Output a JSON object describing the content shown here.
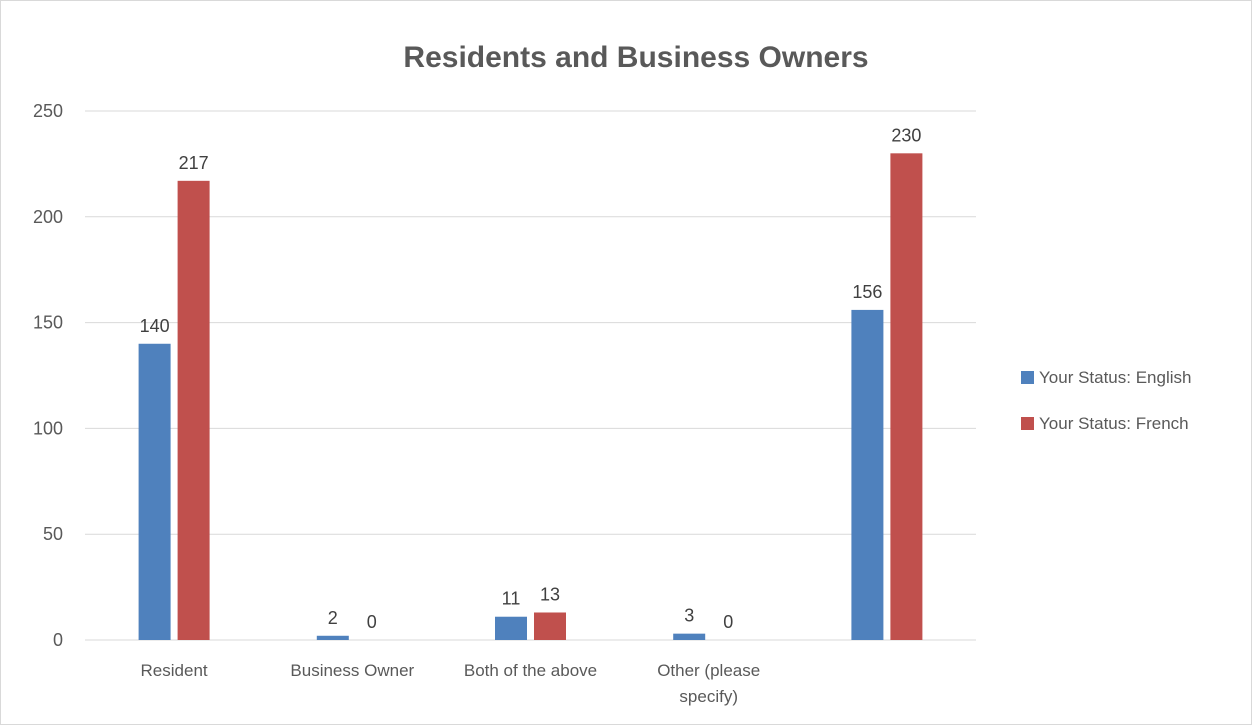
{
  "chart_data": {
    "type": "bar",
    "title": "Residents and Business Owners",
    "xlabel": "",
    "ylabel": "",
    "ylim": [
      0,
      250
    ],
    "yticks": [
      0,
      50,
      100,
      150,
      200,
      250
    ],
    "grid": true,
    "legend_position": "right",
    "categories": [
      "Resident",
      "Business Owner",
      "Both of the above",
      "Other (please specify)",
      ""
    ],
    "series": [
      {
        "name": "Your Status: English",
        "color": "#4f81bd",
        "values": [
          140,
          2,
          11,
          3,
          156
        ]
      },
      {
        "name": "Your Status: French",
        "color": "#c0504d",
        "values": [
          217,
          0,
          13,
          0,
          230
        ]
      }
    ]
  }
}
